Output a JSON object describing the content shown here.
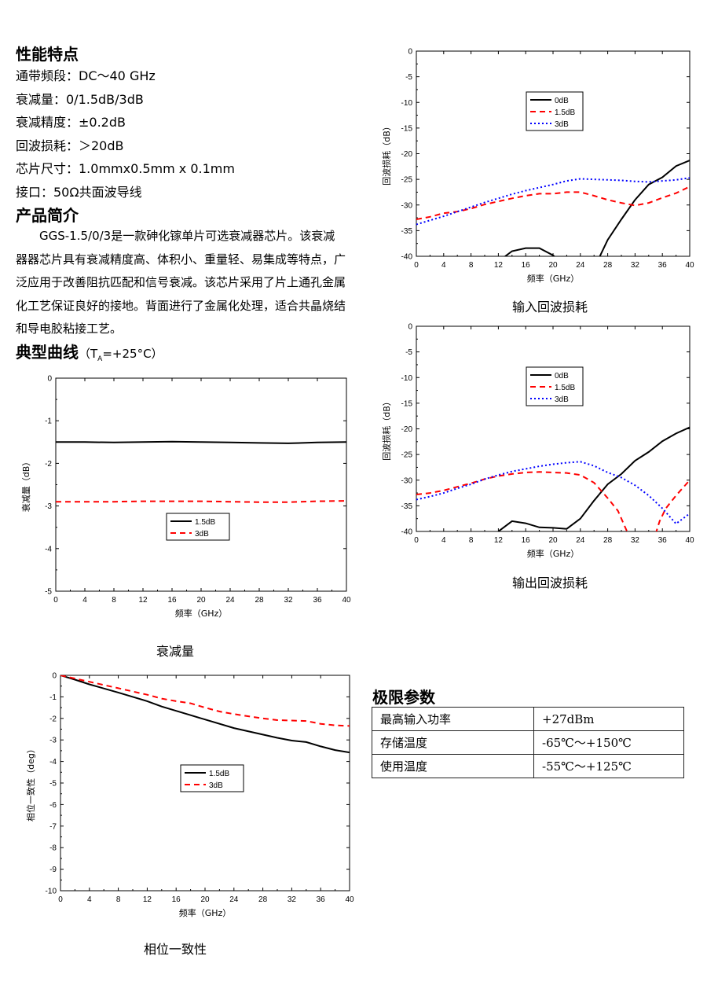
{
  "features": {
    "heading": "性能特点",
    "lines": [
      "通带频段：DC～40 GHz",
      "衰减量：0/1.5dB/3dB",
      "衰减精度：±0.2dB",
      "回波损耗：＞20dB",
      "芯片尺寸：1.0mmx0.5mm x 0.1mm",
      "接口：50Ω共面波导线"
    ]
  },
  "intro": {
    "heading": "产品简介",
    "text": "GGS-1.5/0/3是一款砷化镓单片可选衰减器芯片。该衰减器器芯片具有衰减精度高、体积小、重量轻、易集成等特点，广泛应用于改善阻抗匹配和信号衰减。该芯片采用了片上通孔金属化工艺保证良好的接地。背面进行了金属化处理，适合共晶烧结和导电胶粘接工艺。"
  },
  "curves": {
    "heading": "典型曲线",
    "cond_prefix": "（T",
    "cond_sub": "A",
    "cond_suffix": "=+25°C）"
  },
  "limits": {
    "heading": "极限参数",
    "rows": [
      {
        "param": "最高输入功率",
        "value": "+27dBm"
      },
      {
        "param": "存储温度",
        "value": "-65℃～+150℃"
      },
      {
        "param": "使用温度",
        "value": "-55℃～+125℃"
      }
    ]
  },
  "chart_data": [
    {
      "id": "input-return-loss",
      "type": "line",
      "caption": "输入回波损耗",
      "xlabel": "频率（GHz）",
      "ylabel": "回波损耗（dB）",
      "xlim": [
        0,
        40
      ],
      "ylim": [
        -40,
        0
      ],
      "xticks": [
        0,
        4,
        8,
        12,
        16,
        20,
        24,
        28,
        32,
        36,
        40
      ],
      "yticks": [
        0,
        -5,
        -10,
        -15,
        -20,
        -25,
        -30,
        -35,
        -40
      ],
      "legend_position": "upper-center",
      "series": [
        {
          "name": "0dB",
          "color": "#000000",
          "dash": "solid",
          "points": [
            [
              12,
              -41
            ],
            [
              14,
              -39
            ],
            [
              16,
              -38.4
            ],
            [
              18,
              -38.4
            ],
            [
              20,
              -39.8
            ],
            [
              21,
              -41
            ]
          ]
        },
        {
          "name": "0dB_rise",
          "legend": false,
          "color": "#000000",
          "dash": "solid",
          "points": [
            [
              26.5,
              -41
            ],
            [
              28,
              -36.8
            ],
            [
              30,
              -32.8
            ],
            [
              32,
              -29
            ],
            [
              34,
              -26
            ],
            [
              36,
              -24.6
            ],
            [
              38,
              -22.4
            ],
            [
              40,
              -21.3
            ]
          ]
        },
        {
          "name": "1.5dB",
          "color": "#ff0000",
          "dash": "dashed",
          "points": [
            [
              0,
              -32.8
            ],
            [
              2,
              -32.3
            ],
            [
              4,
              -31.6
            ],
            [
              6,
              -31.3
            ],
            [
              8,
              -30.7
            ],
            [
              10,
              -29.9
            ],
            [
              12,
              -29.3
            ],
            [
              14,
              -28.7
            ],
            [
              16,
              -28.2
            ],
            [
              18,
              -27.8
            ],
            [
              20,
              -27.8
            ],
            [
              22,
              -27.5
            ],
            [
              24,
              -27.5
            ],
            [
              26,
              -28.2
            ],
            [
              28,
              -29
            ],
            [
              30,
              -29.6
            ],
            [
              32,
              -30.1
            ],
            [
              34,
              -29.6
            ],
            [
              36,
              -28.6
            ],
            [
              38,
              -27.7
            ],
            [
              40,
              -26.4
            ]
          ]
        },
        {
          "name": "3dB",
          "color": "#0000ff",
          "dash": "dotted",
          "points": [
            [
              0,
              -33.8
            ],
            [
              2,
              -33
            ],
            [
              4,
              -32.2
            ],
            [
              6,
              -31.3
            ],
            [
              8,
              -30.4
            ],
            [
              10,
              -29.5
            ],
            [
              12,
              -28.7
            ],
            [
              14,
              -27.9
            ],
            [
              16,
              -27.2
            ],
            [
              18,
              -26.6
            ],
            [
              20,
              -26
            ],
            [
              22,
              -25.3
            ],
            [
              24,
              -24.9
            ],
            [
              26,
              -25
            ],
            [
              28,
              -25.1
            ],
            [
              30,
              -25.2
            ],
            [
              32,
              -25.4
            ],
            [
              34,
              -25.5
            ],
            [
              36,
              -25.3
            ],
            [
              38,
              -25.1
            ],
            [
              40,
              -24.7
            ]
          ]
        }
      ]
    },
    {
      "id": "output-return-loss",
      "type": "line",
      "caption": "输出回波损耗",
      "xlabel": "频率（GHz）",
      "ylabel": "回波损耗（dB）",
      "xlim": [
        0,
        40
      ],
      "ylim": [
        -40,
        0
      ],
      "xticks": [
        0,
        4,
        8,
        12,
        16,
        20,
        24,
        28,
        32,
        36,
        40
      ],
      "yticks": [
        0,
        -5,
        -10,
        -15,
        -20,
        -25,
        -30,
        -35,
        -40
      ],
      "legend_position": "upper-center",
      "series": [
        {
          "name": "0dB",
          "color": "#000000",
          "dash": "solid",
          "points": [
            [
              12,
              -40
            ],
            [
              14,
              -38
            ],
            [
              16,
              -38.4
            ],
            [
              18,
              -39.2
            ],
            [
              20,
              -39.3
            ],
            [
              22,
              -39.5
            ],
            [
              24,
              -37.5
            ],
            [
              26,
              -34
            ],
            [
              28,
              -30.8
            ],
            [
              30,
              -28.8
            ],
            [
              32,
              -26.2
            ],
            [
              34,
              -24.5
            ],
            [
              36,
              -22.4
            ],
            [
              38,
              -20.9
            ],
            [
              40,
              -19.7
            ]
          ]
        },
        {
          "name": "1.5dB",
          "color": "#ff0000",
          "dash": "dashed",
          "points": [
            [
              0,
              -32.8
            ],
            [
              2,
              -32.5
            ],
            [
              4,
              -32
            ],
            [
              6,
              -31.3
            ],
            [
              8,
              -30.6
            ],
            [
              10,
              -29.8
            ],
            [
              12,
              -29.2
            ],
            [
              14,
              -28.8
            ],
            [
              16,
              -28.5
            ],
            [
              18,
              -28.4
            ],
            [
              20,
              -28.5
            ],
            [
              22,
              -28.6
            ],
            [
              24,
              -29
            ],
            [
              26,
              -30.5
            ],
            [
              28,
              -33.5
            ],
            [
              29.5,
              -36
            ],
            [
              30.5,
              -39
            ],
            [
              31,
              -40.5
            ]
          ]
        },
        {
          "name": "1.5dB_rise",
          "legend": false,
          "color": "#ff0000",
          "dash": "dashed",
          "points": [
            [
              35,
              -40.5
            ],
            [
              35.6,
              -38
            ],
            [
              36.5,
              -35.5
            ],
            [
              38,
              -33
            ],
            [
              40,
              -30
            ]
          ]
        },
        {
          "name": "3dB",
          "color": "#0000ff",
          "dash": "dotted",
          "points": [
            [
              0,
              -33.8
            ],
            [
              2,
              -33.2
            ],
            [
              4,
              -32.5
            ],
            [
              6,
              -31.6
            ],
            [
              8,
              -30.8
            ],
            [
              10,
              -29.8
            ],
            [
              12,
              -29
            ],
            [
              14,
              -28.3
            ],
            [
              16,
              -27.8
            ],
            [
              18,
              -27.3
            ],
            [
              20,
              -26.9
            ],
            [
              22,
              -26.6
            ],
            [
              24,
              -26.4
            ],
            [
              26,
              -27.2
            ],
            [
              28,
              -28.5
            ],
            [
              30,
              -29.5
            ],
            [
              32,
              -31
            ],
            [
              34,
              -33
            ],
            [
              36,
              -35.5
            ],
            [
              38,
              -38.5
            ],
            [
              40,
              -36.5
            ]
          ]
        }
      ]
    },
    {
      "id": "attenuation",
      "type": "line",
      "caption": "衰减量",
      "xlabel": "频率（GHz）",
      "ylabel": "衰减量（dB）",
      "xlim": [
        0,
        40
      ],
      "ylim": [
        -5,
        0
      ],
      "xticks": [
        0,
        4,
        8,
        12,
        16,
        20,
        24,
        28,
        32,
        36,
        40
      ],
      "yticks": [
        0,
        -1,
        -2,
        -3,
        -4,
        -5
      ],
      "legend_position": "center",
      "series": [
        {
          "name": "1.5dB",
          "color": "#000000",
          "dash": "solid",
          "points": [
            [
              0,
              -1.5
            ],
            [
              4,
              -1.5
            ],
            [
              8,
              -1.51
            ],
            [
              12,
              -1.5
            ],
            [
              16,
              -1.49
            ],
            [
              20,
              -1.5
            ],
            [
              24,
              -1.51
            ],
            [
              28,
              -1.52
            ],
            [
              32,
              -1.53
            ],
            [
              36,
              -1.51
            ],
            [
              40,
              -1.5
            ]
          ]
        },
        {
          "name": "3dB",
          "color": "#ff0000",
          "dash": "dashed",
          "points": [
            [
              0,
              -2.9
            ],
            [
              4,
              -2.9
            ],
            [
              8,
              -2.9
            ],
            [
              12,
              -2.89
            ],
            [
              16,
              -2.89
            ],
            [
              20,
              -2.89
            ],
            [
              24,
              -2.9
            ],
            [
              28,
              -2.91
            ],
            [
              32,
              -2.91
            ],
            [
              36,
              -2.89
            ],
            [
              40,
              -2.88
            ]
          ]
        }
      ]
    },
    {
      "id": "phase-consistency",
      "type": "line",
      "caption": "相位一致性",
      "xlabel": "频率（GHz）",
      "ylabel": "相位一致性（deg）",
      "xlim": [
        0,
        40
      ],
      "ylim": [
        -10,
        0
      ],
      "xticks": [
        0,
        4,
        8,
        12,
        16,
        20,
        24,
        28,
        32,
        36,
        40
      ],
      "yticks": [
        0,
        -1,
        -2,
        -3,
        -4,
        -5,
        -6,
        -7,
        -8,
        -9,
        -10
      ],
      "legend_position": "center",
      "series": [
        {
          "name": "1.5dB",
          "color": "#000000",
          "dash": "solid",
          "points": [
            [
              0,
              0
            ],
            [
              2,
              -0.2
            ],
            [
              4,
              -0.42
            ],
            [
              8,
              -0.8
            ],
            [
              12,
              -1.2
            ],
            [
              14,
              -1.45
            ],
            [
              16,
              -1.65
            ],
            [
              18,
              -1.85
            ],
            [
              20,
              -2.05
            ],
            [
              24,
              -2.45
            ],
            [
              28,
              -2.75
            ],
            [
              30,
              -2.9
            ],
            [
              32,
              -3.03
            ],
            [
              34,
              -3.1
            ],
            [
              36,
              -3.3
            ],
            [
              38,
              -3.47
            ],
            [
              40,
              -3.58
            ]
          ]
        },
        {
          "name": "3dB",
          "color": "#ff0000",
          "dash": "dashed",
          "points": [
            [
              0,
              0
            ],
            [
              4,
              -0.3
            ],
            [
              8,
              -0.6
            ],
            [
              12,
              -0.9
            ],
            [
              14,
              -1.08
            ],
            [
              16,
              -1.2
            ],
            [
              18,
              -1.3
            ],
            [
              20,
              -1.5
            ],
            [
              22,
              -1.68
            ],
            [
              24,
              -1.8
            ],
            [
              26,
              -1.9
            ],
            [
              28,
              -2
            ],
            [
              30,
              -2.08
            ],
            [
              32,
              -2.1
            ],
            [
              34,
              -2.12
            ],
            [
              36,
              -2.25
            ],
            [
              38,
              -2.32
            ],
            [
              40,
              -2.35
            ]
          ]
        }
      ]
    }
  ]
}
